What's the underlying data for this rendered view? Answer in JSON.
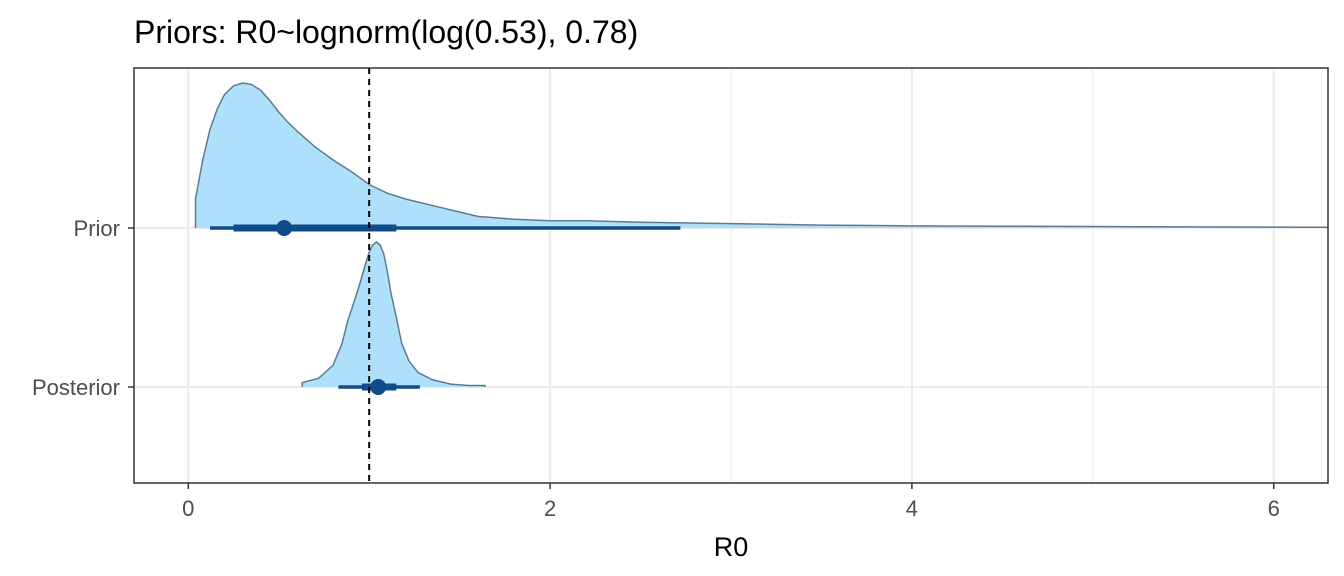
{
  "chart_data": {
    "type": "halfeye",
    "title": "Priors: R0~lognorm(log(0.53), 0.78)",
    "xlabel": "R0",
    "ylabel": "",
    "xlim": [
      -0.3,
      6.3
    ],
    "x_ticks": [
      0,
      2,
      4,
      6
    ],
    "categories": [
      "Prior",
      "Posterior"
    ],
    "reference_line": {
      "x": 1,
      "style": "dashed"
    },
    "colors": {
      "fill": "#aee0fb",
      "outline": "#5e7a8f",
      "interval": "#114c8a",
      "grid": "#ebebeb",
      "panel_border": "#333333"
    },
    "series": [
      {
        "category": "Prior",
        "point": 0.53,
        "interval_66": [
          0.25,
          1.15
        ],
        "interval_95": [
          0.12,
          2.72
        ],
        "density": {
          "x": [
            0.04,
            0.08,
            0.12,
            0.16,
            0.2,
            0.25,
            0.3,
            0.35,
            0.4,
            0.45,
            0.5,
            0.55,
            0.6,
            0.7,
            0.8,
            0.9,
            1.0,
            1.1,
            1.2,
            1.4,
            1.6,
            1.8,
            2.0,
            2.2,
            2.5,
            3.0,
            3.5,
            4.0,
            4.5,
            5.0,
            5.5,
            6.0,
            6.3
          ],
          "y": [
            0.2,
            0.47,
            0.68,
            0.82,
            0.92,
            0.98,
            1.0,
            0.99,
            0.95,
            0.88,
            0.8,
            0.73,
            0.67,
            0.56,
            0.47,
            0.39,
            0.3,
            0.24,
            0.2,
            0.14,
            0.08,
            0.06,
            0.05,
            0.05,
            0.04,
            0.03,
            0.02,
            0.015,
            0.012,
            0.01,
            0.008,
            0.006,
            0.005
          ]
        }
      },
      {
        "category": "Posterior",
        "point": 1.05,
        "interval_66": [
          0.96,
          1.15
        ],
        "interval_95": [
          0.83,
          1.28
        ],
        "density": {
          "x": [
            0.63,
            0.72,
            0.8,
            0.85,
            0.88,
            0.92,
            0.95,
            0.98,
            1.0,
            1.02,
            1.04,
            1.06,
            1.08,
            1.1,
            1.12,
            1.15,
            1.18,
            1.22,
            1.27,
            1.35,
            1.45,
            1.55,
            1.64
          ],
          "y": [
            0.03,
            0.06,
            0.15,
            0.3,
            0.45,
            0.6,
            0.72,
            0.85,
            0.93,
            0.98,
            1.0,
            0.98,
            0.92,
            0.8,
            0.65,
            0.48,
            0.3,
            0.18,
            0.1,
            0.05,
            0.02,
            0.01,
            0.01
          ]
        }
      }
    ],
    "grid": true,
    "legend": "none"
  }
}
